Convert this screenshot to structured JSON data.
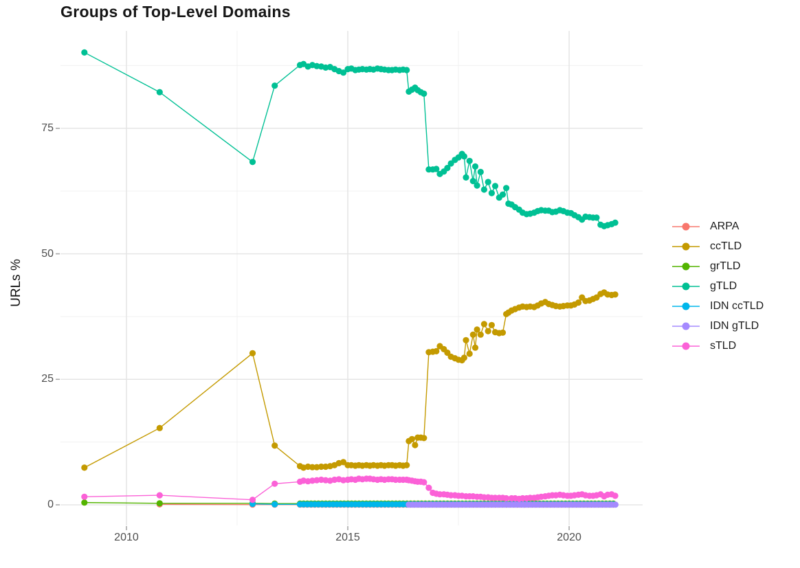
{
  "chart_data": {
    "type": "line",
    "title": "Groups of Top-Level Domains",
    "xlabel": "",
    "ylabel": "URLs %",
    "xlim": [
      2008.51,
      2021.66
    ],
    "ylim": [
      -4.1,
      94.4
    ],
    "grid": true,
    "legend_position": "right",
    "x_ticks": {
      "major": [
        2010,
        2015,
        2020
      ],
      "labels": [
        "2010",
        "2015",
        "2020"
      ],
      "minor": [
        2012.5,
        2017.5
      ]
    },
    "y_ticks": {
      "major": [
        0,
        25,
        50,
        75
      ],
      "labels": [
        "0",
        "25",
        "50",
        "75"
      ],
      "minor": [
        12.5,
        37.5,
        62.5,
        87.5
      ]
    },
    "series": [
      {
        "name": "ARPA",
        "color": "#F8766D",
        "points": [
          [
            2010.75,
            0.1
          ],
          [
            2012.85,
            0.05
          ],
          [
            2013.35,
            0.05
          ]
        ],
        "flat": {
          "from": 2013.92,
          "to": 2021.05,
          "step": 0.0833,
          "value": 0.05
        }
      },
      {
        "name": "ccTLD",
        "color": "#C49A00",
        "points": [
          [
            2009.05,
            7.4
          ],
          [
            2010.75,
            15.3
          ],
          [
            2012.85,
            30.2
          ],
          [
            2013.35,
            11.8
          ],
          [
            2013.92,
            7.7
          ],
          [
            2014.0,
            7.4
          ],
          [
            2014.1,
            7.6
          ],
          [
            2014.2,
            7.5
          ],
          [
            2014.3,
            7.5
          ],
          [
            2014.4,
            7.6
          ],
          [
            2014.5,
            7.6
          ],
          [
            2014.6,
            7.7
          ],
          [
            2014.7,
            7.9
          ],
          [
            2014.8,
            8.3
          ],
          [
            2014.9,
            8.5
          ],
          [
            2015.0,
            7.9
          ],
          [
            2015.08,
            7.9
          ],
          [
            2015.17,
            7.8
          ],
          [
            2015.25,
            7.9
          ],
          [
            2015.33,
            7.8
          ],
          [
            2015.42,
            7.9
          ],
          [
            2015.5,
            7.8
          ],
          [
            2015.58,
            7.9
          ],
          [
            2015.67,
            7.8
          ],
          [
            2015.75,
            7.9
          ],
          [
            2015.83,
            7.8
          ],
          [
            2015.92,
            7.9
          ],
          [
            2016.0,
            7.9
          ],
          [
            2016.08,
            7.8
          ],
          [
            2016.17,
            7.9
          ],
          [
            2016.25,
            7.8
          ],
          [
            2016.33,
            7.9
          ],
          [
            2016.38,
            12.7
          ],
          [
            2016.45,
            13.1
          ],
          [
            2016.52,
            11.9
          ],
          [
            2016.58,
            13.4
          ],
          [
            2016.65,
            13.4
          ],
          [
            2016.72,
            13.3
          ],
          [
            2016.83,
            30.4
          ],
          [
            2016.92,
            30.5
          ],
          [
            2017.0,
            30.6
          ],
          [
            2017.08,
            31.6
          ],
          [
            2017.17,
            31.0
          ],
          [
            2017.25,
            30.3
          ],
          [
            2017.33,
            29.5
          ],
          [
            2017.42,
            29.2
          ],
          [
            2017.5,
            28.9
          ],
          [
            2017.58,
            28.8
          ],
          [
            2017.63,
            29.3
          ],
          [
            2017.67,
            32.8
          ],
          [
            2017.75,
            30.1
          ],
          [
            2017.83,
            33.9
          ],
          [
            2017.88,
            31.3
          ],
          [
            2017.92,
            34.9
          ],
          [
            2018.0,
            33.9
          ],
          [
            2018.08,
            36.0
          ],
          [
            2018.17,
            34.6
          ],
          [
            2018.25,
            35.8
          ],
          [
            2018.33,
            34.4
          ],
          [
            2018.42,
            34.2
          ],
          [
            2018.5,
            34.3
          ],
          [
            2018.58,
            38.0
          ],
          [
            2018.63,
            38.3
          ],
          [
            2018.7,
            38.7
          ],
          [
            2018.78,
            39.0
          ],
          [
            2018.87,
            39.3
          ],
          [
            2018.95,
            39.5
          ],
          [
            2019.04,
            39.4
          ],
          [
            2019.12,
            39.5
          ],
          [
            2019.21,
            39.4
          ],
          [
            2019.29,
            39.7
          ],
          [
            2019.37,
            40.1
          ],
          [
            2019.46,
            40.4
          ],
          [
            2019.54,
            40.0
          ],
          [
            2019.62,
            39.8
          ],
          [
            2019.7,
            39.6
          ],
          [
            2019.79,
            39.5
          ],
          [
            2019.87,
            39.6
          ],
          [
            2019.96,
            39.7
          ],
          [
            2020.04,
            39.7
          ],
          [
            2020.12,
            39.9
          ],
          [
            2020.21,
            40.3
          ],
          [
            2020.29,
            41.3
          ],
          [
            2020.37,
            40.6
          ],
          [
            2020.46,
            40.7
          ],
          [
            2020.54,
            41.0
          ],
          [
            2020.62,
            41.3
          ],
          [
            2020.71,
            42.0
          ],
          [
            2020.79,
            42.3
          ],
          [
            2020.87,
            41.9
          ],
          [
            2020.96,
            41.8
          ],
          [
            2021.04,
            41.9
          ]
        ]
      },
      {
        "name": "grTLD",
        "color": "#53B400",
        "points": [
          [
            2009.05,
            0.45
          ],
          [
            2010.75,
            0.3
          ],
          [
            2012.85,
            0.3
          ],
          [
            2013.35,
            0.25
          ]
        ],
        "flat": {
          "from": 2013.92,
          "to": 2021.05,
          "step": 0.0833,
          "value": 0.25
        }
      },
      {
        "name": "gTLD",
        "color": "#00C094",
        "points": [
          [
            2009.05,
            90.1
          ],
          [
            2010.75,
            82.2
          ],
          [
            2012.85,
            68.3
          ],
          [
            2013.35,
            83.5
          ],
          [
            2013.92,
            87.6
          ],
          [
            2014.0,
            87.8
          ],
          [
            2014.1,
            87.3
          ],
          [
            2014.2,
            87.6
          ],
          [
            2014.3,
            87.4
          ],
          [
            2014.4,
            87.3
          ],
          [
            2014.5,
            87.1
          ],
          [
            2014.6,
            87.2
          ],
          [
            2014.7,
            86.8
          ],
          [
            2014.8,
            86.4
          ],
          [
            2014.9,
            86.1
          ],
          [
            2015.0,
            86.8
          ],
          [
            2015.08,
            86.9
          ],
          [
            2015.17,
            86.6
          ],
          [
            2015.25,
            86.7
          ],
          [
            2015.33,
            86.8
          ],
          [
            2015.42,
            86.7
          ],
          [
            2015.5,
            86.8
          ],
          [
            2015.58,
            86.7
          ],
          [
            2015.67,
            86.9
          ],
          [
            2015.75,
            86.8
          ],
          [
            2015.83,
            86.7
          ],
          [
            2015.92,
            86.6
          ],
          [
            2016.0,
            86.6
          ],
          [
            2016.08,
            86.7
          ],
          [
            2016.17,
            86.6
          ],
          [
            2016.25,
            86.7
          ],
          [
            2016.33,
            86.6
          ],
          [
            2016.38,
            82.3
          ],
          [
            2016.45,
            82.7
          ],
          [
            2016.52,
            83.1
          ],
          [
            2016.58,
            82.6
          ],
          [
            2016.65,
            82.2
          ],
          [
            2016.72,
            81.9
          ],
          [
            2016.83,
            66.8
          ],
          [
            2016.92,
            66.8
          ],
          [
            2017.0,
            66.9
          ],
          [
            2017.08,
            65.9
          ],
          [
            2017.17,
            66.4
          ],
          [
            2017.25,
            67.1
          ],
          [
            2017.33,
            68.0
          ],
          [
            2017.42,
            68.7
          ],
          [
            2017.5,
            69.2
          ],
          [
            2017.58,
            69.9
          ],
          [
            2017.63,
            69.4
          ],
          [
            2017.67,
            65.2
          ],
          [
            2017.75,
            68.5
          ],
          [
            2017.83,
            64.5
          ],
          [
            2017.88,
            67.4
          ],
          [
            2017.92,
            63.6
          ],
          [
            2018.0,
            66.3
          ],
          [
            2018.08,
            62.8
          ],
          [
            2018.17,
            64.3
          ],
          [
            2018.25,
            62.1
          ],
          [
            2018.33,
            63.5
          ],
          [
            2018.42,
            61.2
          ],
          [
            2018.5,
            61.8
          ],
          [
            2018.58,
            63.1
          ],
          [
            2018.63,
            60.0
          ],
          [
            2018.7,
            59.8
          ],
          [
            2018.78,
            59.3
          ],
          [
            2018.87,
            58.8
          ],
          [
            2018.95,
            58.2
          ],
          [
            2019.04,
            57.9
          ],
          [
            2019.12,
            58.0
          ],
          [
            2019.21,
            58.2
          ],
          [
            2019.29,
            58.5
          ],
          [
            2019.37,
            58.7
          ],
          [
            2019.46,
            58.6
          ],
          [
            2019.54,
            58.6
          ],
          [
            2019.62,
            58.3
          ],
          [
            2019.7,
            58.4
          ],
          [
            2019.79,
            58.7
          ],
          [
            2019.87,
            58.5
          ],
          [
            2019.96,
            58.2
          ],
          [
            2020.04,
            58.1
          ],
          [
            2020.12,
            57.7
          ],
          [
            2020.21,
            57.3
          ],
          [
            2020.29,
            56.8
          ],
          [
            2020.37,
            57.4
          ],
          [
            2020.46,
            57.3
          ],
          [
            2020.54,
            57.2
          ],
          [
            2020.62,
            57.2
          ],
          [
            2020.71,
            55.8
          ],
          [
            2020.79,
            55.5
          ],
          [
            2020.87,
            55.7
          ],
          [
            2020.96,
            55.9
          ],
          [
            2021.04,
            56.2
          ]
        ]
      },
      {
        "name": "IDN ccTLD",
        "color": "#00B6EB",
        "points": [
          [
            2012.85,
            0.2
          ],
          [
            2013.35,
            0.1
          ]
        ],
        "flat": {
          "from": 2013.92,
          "to": 2021.05,
          "step": 0.0833,
          "value": 0.1
        }
      },
      {
        "name": "IDN gTLD",
        "color": "#A58AFF",
        "points": [],
        "flat": {
          "from": 2016.38,
          "to": 2021.05,
          "step": 0.0833,
          "value": 0.05
        }
      },
      {
        "name": "sTLD",
        "color": "#FB61D7",
        "points": [
          [
            2009.05,
            1.6
          ],
          [
            2010.75,
            1.9
          ],
          [
            2012.85,
            1.0
          ],
          [
            2013.35,
            4.2
          ],
          [
            2013.92,
            4.6
          ],
          [
            2014.0,
            4.8
          ],
          [
            2014.1,
            4.7
          ],
          [
            2014.2,
            4.8
          ],
          [
            2014.3,
            4.9
          ],
          [
            2014.4,
            5.0
          ],
          [
            2014.5,
            4.9
          ],
          [
            2014.6,
            4.8
          ],
          [
            2014.7,
            5.0
          ],
          [
            2014.8,
            5.1
          ],
          [
            2014.9,
            4.9
          ],
          [
            2015.0,
            5.0
          ],
          [
            2015.08,
            5.1
          ],
          [
            2015.17,
            5.0
          ],
          [
            2015.25,
            5.2
          ],
          [
            2015.33,
            5.1
          ],
          [
            2015.42,
            5.2
          ],
          [
            2015.5,
            5.2
          ],
          [
            2015.58,
            5.1
          ],
          [
            2015.67,
            5.0
          ],
          [
            2015.75,
            5.1
          ],
          [
            2015.83,
            5.0
          ],
          [
            2015.92,
            5.1
          ],
          [
            2016.0,
            5.1
          ],
          [
            2016.08,
            5.0
          ],
          [
            2016.17,
            5.0
          ],
          [
            2016.25,
            5.0
          ],
          [
            2016.33,
            5.0
          ],
          [
            2016.38,
            4.9
          ],
          [
            2016.45,
            4.8
          ],
          [
            2016.52,
            4.7
          ],
          [
            2016.58,
            4.6
          ],
          [
            2016.65,
            4.6
          ],
          [
            2016.72,
            4.5
          ],
          [
            2016.83,
            3.4
          ],
          [
            2016.92,
            2.4
          ],
          [
            2017.0,
            2.2
          ],
          [
            2017.08,
            2.1
          ],
          [
            2017.17,
            2.1
          ],
          [
            2017.25,
            2.0
          ],
          [
            2017.33,
            1.9
          ],
          [
            2017.42,
            1.9
          ],
          [
            2017.5,
            1.8
          ],
          [
            2017.58,
            1.8
          ],
          [
            2017.67,
            1.7
          ],
          [
            2017.75,
            1.7
          ],
          [
            2017.83,
            1.7
          ],
          [
            2017.92,
            1.6
          ],
          [
            2018.0,
            1.6
          ],
          [
            2018.08,
            1.5
          ],
          [
            2018.17,
            1.5
          ],
          [
            2018.25,
            1.4
          ],
          [
            2018.33,
            1.4
          ],
          [
            2018.42,
            1.4
          ],
          [
            2018.5,
            1.4
          ],
          [
            2018.58,
            1.3
          ],
          [
            2018.7,
            1.3
          ],
          [
            2018.78,
            1.3
          ],
          [
            2018.87,
            1.2
          ],
          [
            2018.95,
            1.3
          ],
          [
            2019.04,
            1.3
          ],
          [
            2019.12,
            1.4
          ],
          [
            2019.21,
            1.4
          ],
          [
            2019.29,
            1.5
          ],
          [
            2019.37,
            1.6
          ],
          [
            2019.46,
            1.7
          ],
          [
            2019.54,
            1.8
          ],
          [
            2019.62,
            1.9
          ],
          [
            2019.7,
            1.9
          ],
          [
            2019.79,
            2.0
          ],
          [
            2019.87,
            1.9
          ],
          [
            2019.96,
            1.8
          ],
          [
            2020.04,
            1.8
          ],
          [
            2020.12,
            1.9
          ],
          [
            2020.21,
            2.0
          ],
          [
            2020.29,
            2.1
          ],
          [
            2020.37,
            1.9
          ],
          [
            2020.46,
            1.8
          ],
          [
            2020.54,
            1.8
          ],
          [
            2020.62,
            1.9
          ],
          [
            2020.71,
            2.1
          ],
          [
            2020.79,
            1.7
          ],
          [
            2020.87,
            2.0
          ],
          [
            2020.96,
            2.1
          ],
          [
            2021.04,
            1.8
          ]
        ]
      }
    ]
  }
}
